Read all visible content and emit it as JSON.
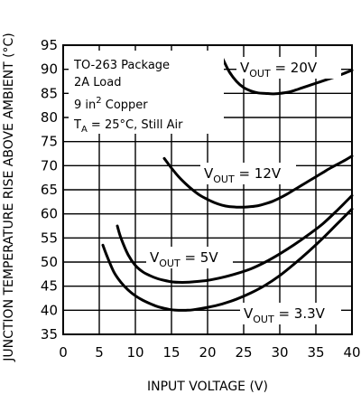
{
  "chart_data": {
    "type": "line",
    "title": "",
    "xlabel": "INPUT VOLTAGE (V)",
    "ylabel": "JUNCTION TEMPERATURE RISE ABOVE AMBIENT (°C)",
    "xlim": [
      0,
      40
    ],
    "ylim": [
      35,
      95
    ],
    "xticks": [
      0,
      5,
      10,
      15,
      20,
      25,
      30,
      35,
      40
    ],
    "yticks": [
      35,
      40,
      45,
      50,
      55,
      60,
      65,
      70,
      75,
      80,
      85,
      90,
      95
    ],
    "grid": true,
    "annotation_lines": [
      "TO-263 Package",
      "2A Load",
      "9 in² Copper",
      "T_A = 25°C, Still Air"
    ],
    "series": [
      {
        "name": "V_OUT = 20V",
        "label_main": "V",
        "label_sub": "OUT",
        "label_rest": " = 20V",
        "x": [
          22,
          23,
          24,
          25,
          26,
          27,
          28,
          29,
          30,
          31,
          32,
          33,
          34,
          35,
          36,
          37,
          38,
          39,
          40
        ],
        "y": [
          92.5,
          89.5,
          87.5,
          86.2,
          85.5,
          85.1,
          85.0,
          84.9,
          85.0,
          85.2,
          85.6,
          86.1,
          86.6,
          87.1,
          87.6,
          88.1,
          88.6,
          89.2,
          89.8
        ]
      },
      {
        "name": "V_OUT = 12V",
        "label_main": "V",
        "label_sub": "OUT",
        "label_rest": " = 12V",
        "x": [
          14,
          15,
          16,
          17,
          18,
          19,
          20,
          21,
          22,
          23,
          24,
          25,
          26,
          27,
          28,
          29,
          30,
          31,
          32,
          33,
          34,
          35,
          36,
          37,
          38,
          39,
          40
        ],
        "y": [
          71.5,
          69.5,
          67.7,
          66.2,
          64.9,
          63.8,
          63.0,
          62.3,
          61.8,
          61.5,
          61.4,
          61.4,
          61.5,
          61.7,
          62.1,
          62.6,
          63.3,
          64.1,
          65.0,
          65.9,
          66.8,
          67.7,
          68.6,
          69.5,
          70.3,
          71.1,
          72.0
        ]
      },
      {
        "name": "V_OUT = 5V",
        "label_main": "V",
        "label_sub": "OUT",
        "label_rest": " = 5V",
        "x": [
          7.5,
          8,
          9,
          10,
          11,
          12,
          13,
          14,
          15,
          16,
          17,
          18,
          20,
          22,
          24,
          26,
          28,
          30,
          32,
          34,
          36,
          38,
          40
        ],
        "y": [
          57.5,
          55.0,
          51.5,
          49.3,
          48.0,
          47.2,
          46.6,
          46.2,
          45.9,
          45.8,
          45.8,
          45.9,
          46.2,
          46.8,
          47.6,
          48.6,
          50.0,
          51.7,
          53.6,
          55.7,
          58.0,
          60.8,
          63.8
        ]
      },
      {
        "name": "V_OUT = 3.3V",
        "label_main": "V",
        "label_sub": "OUT",
        "label_rest": " = 3.3V",
        "x": [
          5.5,
          6,
          7,
          8,
          9,
          10,
          11,
          12,
          13,
          14,
          15,
          16,
          17,
          18,
          20,
          22,
          24,
          26,
          28,
          30,
          32,
          34,
          36,
          38,
          40
        ],
        "y": [
          53.5,
          51.5,
          48.0,
          45.8,
          44.2,
          43.0,
          42.1,
          41.4,
          40.8,
          40.4,
          40.1,
          40.0,
          40.0,
          40.1,
          40.6,
          41.3,
          42.3,
          43.6,
          45.2,
          47.2,
          49.6,
          52.2,
          55.0,
          58.0,
          61.0
        ]
      }
    ]
  }
}
